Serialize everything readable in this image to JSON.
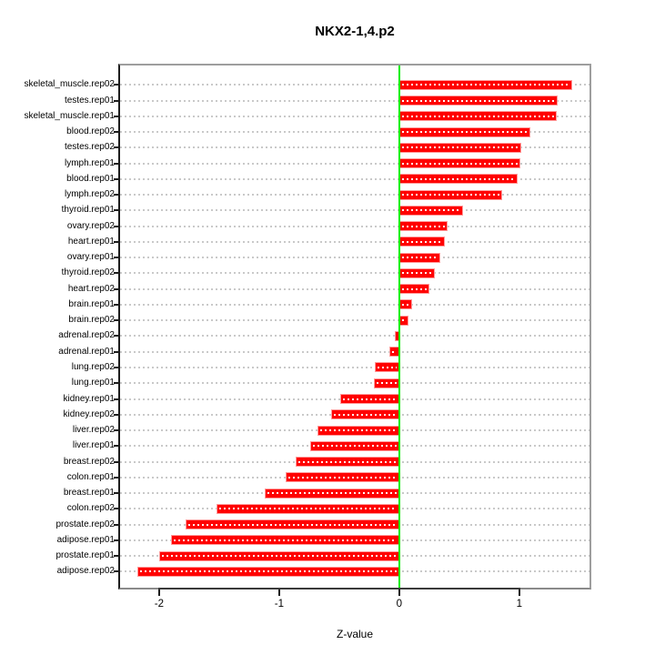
{
  "figure": {
    "title": "NKX2-1,4.p2",
    "xlabel": "Z-value"
  },
  "chart_data": {
    "type": "bar",
    "orientation": "horizontal",
    "title": "NKX2-1,4.p2",
    "xlabel": "Z-value",
    "ylabel": "",
    "legend": false,
    "grid": true,
    "categories": [
      "skeletal_muscle.rep02",
      "testes.rep01",
      "skeletal_muscle.rep01",
      "blood.rep02",
      "testes.rep02",
      "lymph.rep01",
      "blood.rep01",
      "lymph.rep02",
      "thyroid.rep01",
      "ovary.rep02",
      "heart.rep01",
      "ovary.rep01",
      "thyroid.rep02",
      "heart.rep02",
      "brain.rep01",
      "brain.rep02",
      "adrenal.rep02",
      "adrenal.rep01",
      "lung.rep02",
      "lung.rep01",
      "kidney.rep01",
      "kidney.rep02",
      "liver.rep02",
      "liver.rep01",
      "breast.rep02",
      "colon.rep01",
      "breast.rep01",
      "colon.rep02",
      "prostate.rep02",
      "adipose.rep01",
      "prostate.rep01",
      "adipose.rep02"
    ],
    "values": [
      1.44,
      1.32,
      1.31,
      1.09,
      1.02,
      1.01,
      0.99,
      0.86,
      0.53,
      0.4,
      0.38,
      0.34,
      0.3,
      0.25,
      0.11,
      0.08,
      -0.04,
      -0.08,
      -0.2,
      -0.21,
      -0.49,
      -0.57,
      -0.68,
      -0.74,
      -0.86,
      -0.95,
      -1.12,
      -1.52,
      -1.78,
      -1.9,
      -2.0,
      -2.18
    ],
    "x_ticks": [
      "-2",
      "-1",
      "0",
      "1"
    ],
    "x_tick_values": [
      -2,
      -1,
      0,
      1
    ],
    "xlim": [
      -2.325,
      1.585
    ],
    "colors": {
      "bar_fill": "#ff0000",
      "bar_edge": "#ff9a9a",
      "bar_dash": "#ffffff",
      "zero_line": "#00ee00",
      "grid_line": "#c9c9c9",
      "frame": "#9e9e9e",
      "text": "#000000"
    }
  }
}
